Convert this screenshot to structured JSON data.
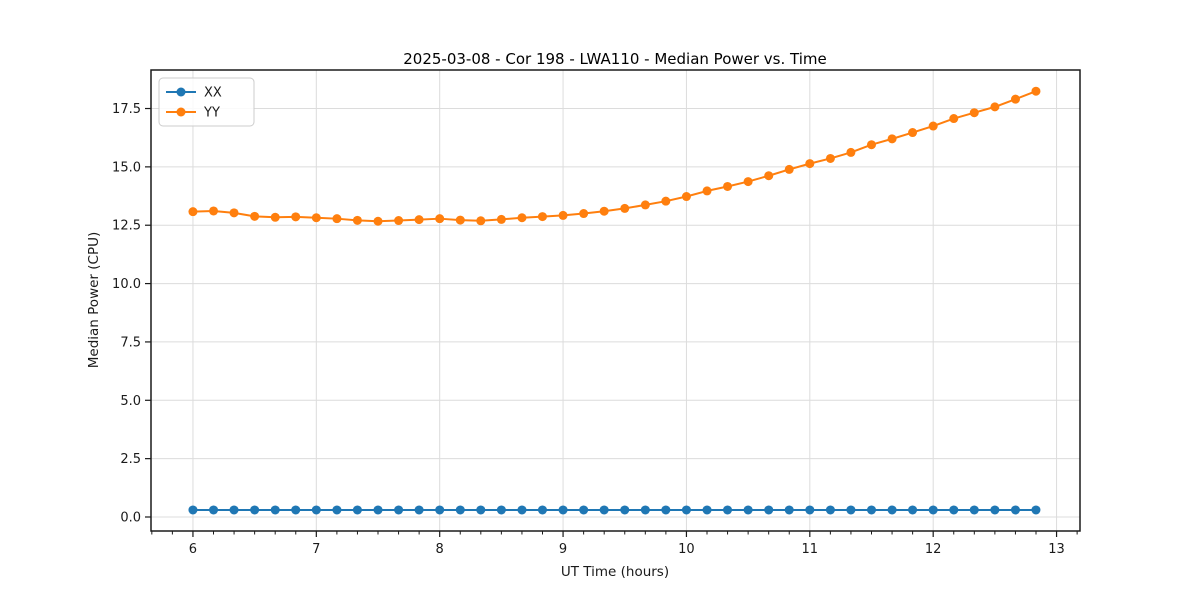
{
  "figure": {
    "background": "#ffffff",
    "grid_color": "#dcdcdc",
    "spine_color": "#1a1a1a"
  },
  "chart_data": {
    "type": "line",
    "title": "2025-03-08 - Cor 198 - LWA110 - Median Power vs. Time",
    "xlabel": "UT Time (hours)",
    "ylabel": "Median Power (CPU)",
    "xlim": [
      5.66,
      13.19
    ],
    "ylim": [
      -0.6,
      19.15
    ],
    "xticks": [
      6,
      7,
      8,
      9,
      10,
      11,
      12,
      13
    ],
    "xtick_labels": [
      "6",
      "7",
      "8",
      "9",
      "10",
      "11",
      "12",
      "13"
    ],
    "yticks": [
      0.0,
      2.5,
      5.0,
      7.5,
      10.0,
      12.5,
      15.0,
      17.5
    ],
    "ytick_labels": [
      "0.0",
      "2.5",
      "5.0",
      "7.5",
      "10.0",
      "12.5",
      "15.0",
      "17.5"
    ],
    "x_minor_step": 0.1666667,
    "grid": "major",
    "legend_position": "upper-left",
    "x": [
      6.0,
      6.167,
      6.333,
      6.5,
      6.667,
      6.833,
      7.0,
      7.167,
      7.333,
      7.5,
      7.667,
      7.833,
      8.0,
      8.167,
      8.333,
      8.5,
      8.667,
      8.833,
      9.0,
      9.167,
      9.333,
      9.5,
      9.667,
      9.833,
      10.0,
      10.167,
      10.333,
      10.5,
      10.667,
      10.833,
      11.0,
      11.167,
      11.333,
      11.5,
      11.667,
      11.833,
      12.0,
      12.167,
      12.333,
      12.5,
      12.667,
      12.833
    ],
    "series": [
      {
        "name": "XX",
        "color": "#1f77b4",
        "values": [
          0.3,
          0.3,
          0.3,
          0.3,
          0.3,
          0.3,
          0.3,
          0.3,
          0.3,
          0.3,
          0.3,
          0.3,
          0.3,
          0.3,
          0.3,
          0.3,
          0.3,
          0.3,
          0.3,
          0.3,
          0.3,
          0.3,
          0.3,
          0.3,
          0.3,
          0.3,
          0.3,
          0.3,
          0.3,
          0.3,
          0.3,
          0.3,
          0.3,
          0.3,
          0.3,
          0.3,
          0.3,
          0.3,
          0.3,
          0.3,
          0.3,
          0.3
        ]
      },
      {
        "name": "YY",
        "color": "#ff7f0e",
        "values": [
          13.08,
          13.11,
          13.03,
          12.88,
          12.84,
          12.86,
          12.82,
          12.78,
          12.71,
          12.67,
          12.7,
          12.74,
          12.78,
          12.72,
          12.69,
          12.75,
          12.82,
          12.87,
          12.92,
          13.0,
          13.1,
          13.22,
          13.37,
          13.53,
          13.73,
          13.97,
          14.16,
          14.37,
          14.62,
          14.89,
          15.14,
          15.36,
          15.62,
          15.95,
          16.2,
          16.47,
          16.75,
          17.07,
          17.32,
          17.57,
          17.9,
          18.24
        ]
      }
    ]
  }
}
